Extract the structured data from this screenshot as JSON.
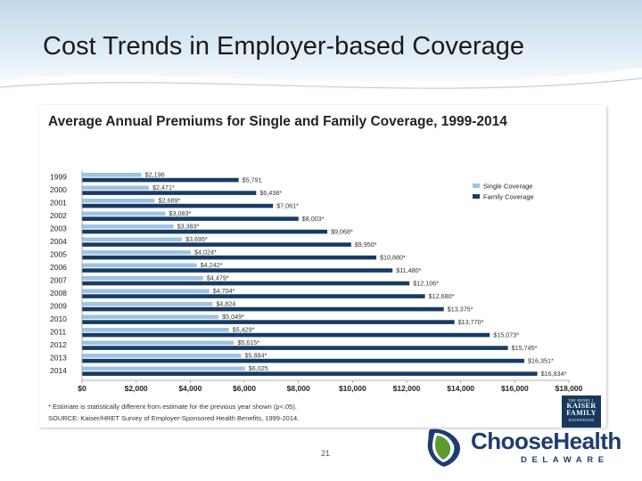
{
  "slide": {
    "title": "Cost Trends in Employer-based Coverage",
    "page_number": "21"
  },
  "chart_data": {
    "type": "bar",
    "orientation": "horizontal",
    "title": "Average Annual Premiums for Single and Family Coverage, 1999-2014",
    "categories": [
      "1999",
      "2000",
      "2001",
      "2002",
      "2003",
      "2004",
      "2005",
      "2006",
      "2007",
      "2008",
      "2009",
      "2010",
      "2011",
      "2012",
      "2013",
      "2014"
    ],
    "series": [
      {
        "name": "Single Coverage",
        "color": "#9dc3e6",
        "values": [
          2196,
          2471,
          2689,
          3083,
          3383,
          3695,
          4024,
          4242,
          4479,
          4704,
          4824,
          5049,
          5429,
          5615,
          5884,
          6025
        ],
        "labels": [
          "$2,196",
          "$2,471*",
          "$2,689*",
          "$3,083*",
          "$3,383*",
          "$3,695*",
          "$4,024*",
          "$4,242*",
          "$4,479*",
          "$4,704*",
          "$4,824",
          "$5,049*",
          "$5,429*",
          "$5,615*",
          "$5,884*",
          "$6,025"
        ]
      },
      {
        "name": "Family Coverage",
        "color": "#173c64",
        "values": [
          5791,
          6438,
          7061,
          8003,
          9068,
          9950,
          10880,
          11480,
          12106,
          12680,
          13375,
          13770,
          15073,
          15745,
          16351,
          16834
        ],
        "labels": [
          "$5,791",
          "$6,438*",
          "$7,061*",
          "$8,003*",
          "$9,068*",
          "$9,950*",
          "$10,880*",
          "$11,480*",
          "$12,106*",
          "$12,680*",
          "$13,375*",
          "$13,770*",
          "$15,073*",
          "$15,745*",
          "$16,351*",
          "$16,834*"
        ]
      }
    ],
    "xlim": [
      0,
      18000
    ],
    "x_ticks": [
      0,
      2000,
      4000,
      6000,
      8000,
      10000,
      12000,
      14000,
      16000,
      18000
    ],
    "x_tick_labels": [
      "$0",
      "$2,000",
      "$4,000",
      "$6,000",
      "$8,000",
      "$10,000",
      "$12,000",
      "$14,000",
      "$16,000",
      "$18,000"
    ],
    "legend_position": "right",
    "grid": false
  },
  "footnotes": {
    "significance": "* Estimate is statistically different from estimate for the previous year shown (p<.05).",
    "source": "SOURCE: Kaiser/HRET Survey of Employer-Sponsored Health Benefits, 1999-2014."
  },
  "logos": {
    "kff_top": "THE HENRY J.",
    "kff_name_1": "KAISER",
    "kff_name_2": "FAMILY",
    "kff_bottom": "FOUNDATION",
    "choose_health_brand": "ChooseHealth",
    "choose_health_state": "DELAWARE"
  }
}
